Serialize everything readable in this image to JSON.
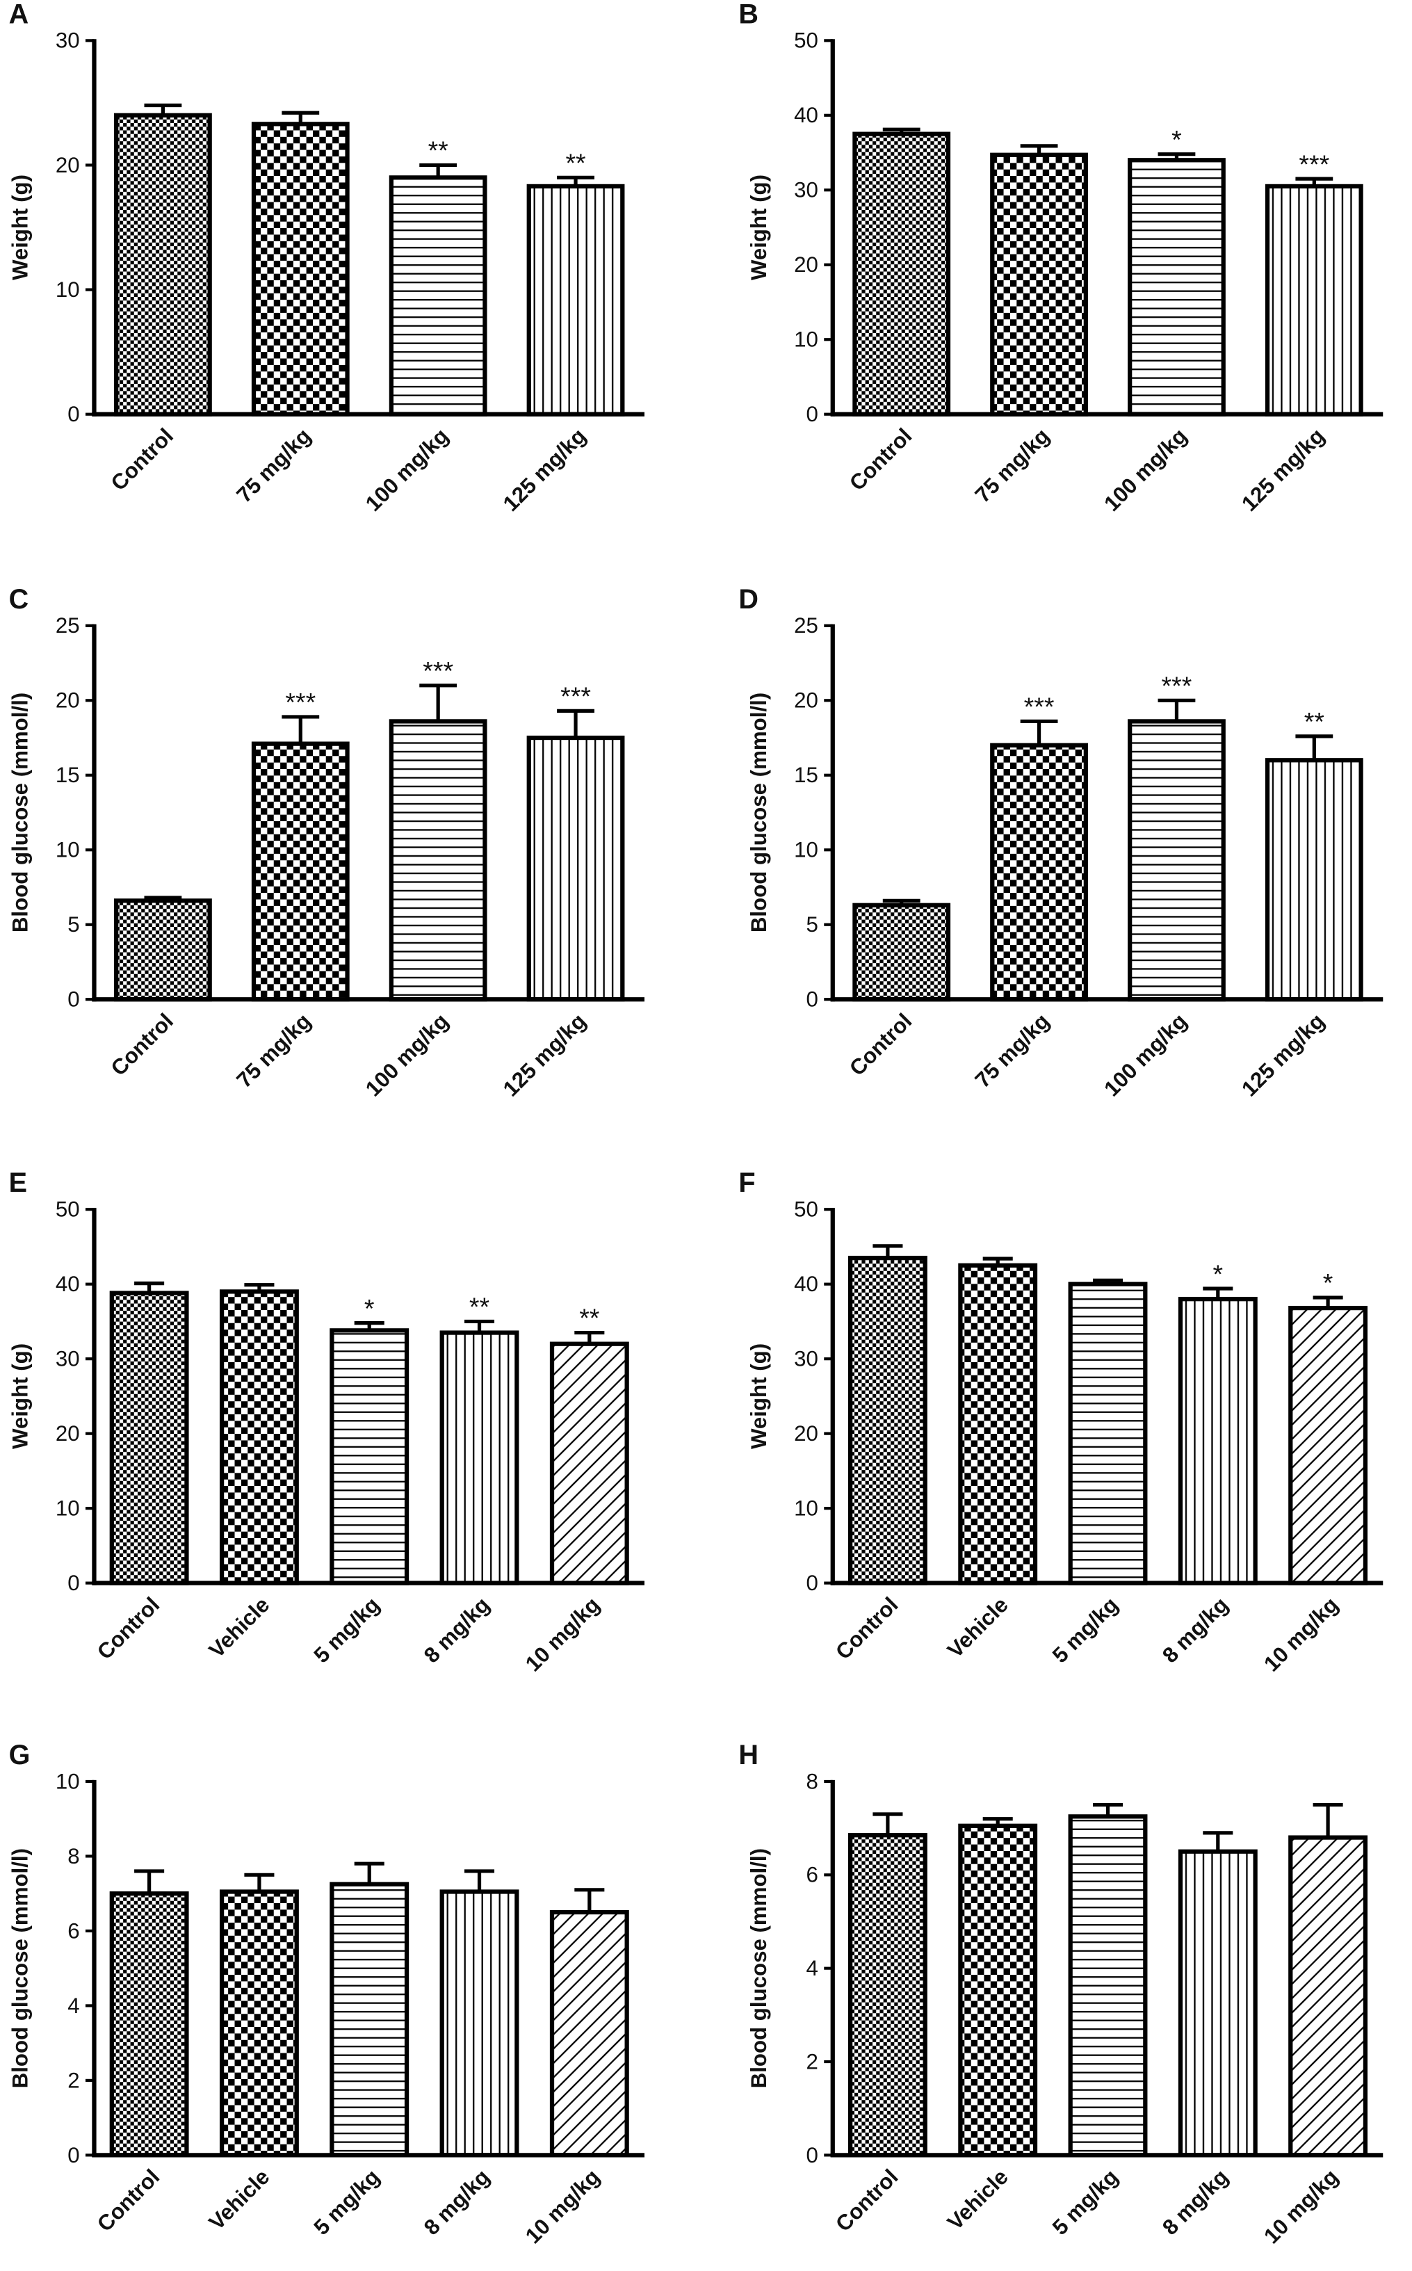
{
  "chart_data": [
    {
      "type": "bar",
      "panel": "A",
      "ylabel": "Weight (g)",
      "categories": [
        "Control",
        "75 mg/kg",
        "100 mg/kg",
        "125 mg/kg"
      ],
      "values": [
        24,
        23.3,
        19,
        18.3
      ],
      "errors": [
        0.8,
        0.9,
        1.0,
        0.7
      ],
      "annotations": [
        null,
        null,
        "**",
        "**"
      ],
      "ylim": [
        0,
        30
      ],
      "yticks": [
        0,
        10,
        20,
        30
      ]
    },
    {
      "type": "bar",
      "panel": "B",
      "ylabel": "Weight (g)",
      "categories": [
        "Control",
        "75 mg/kg",
        "100 mg/kg",
        "125 mg/kg"
      ],
      "values": [
        37.5,
        34.7,
        34,
        30.5
      ],
      "errors": [
        0.6,
        1.2,
        0.8,
        1.0
      ],
      "annotations": [
        null,
        null,
        "*",
        "***"
      ],
      "ylim": [
        0,
        50
      ],
      "yticks": [
        0,
        10,
        20,
        30,
        40,
        50
      ]
    },
    {
      "type": "bar",
      "panel": "C",
      "ylabel": "Blood glucose (mmol/l)",
      "categories": [
        "Control",
        "75 mg/kg",
        "100 mg/kg",
        "125 mg/kg"
      ],
      "values": [
        6.6,
        17.1,
        18.6,
        17.5
      ],
      "errors": [
        0.2,
        1.8,
        2.4,
        1.8
      ],
      "annotations": [
        null,
        "***",
        "***",
        "***"
      ],
      "ylim": [
        0,
        25
      ],
      "yticks": [
        0,
        5,
        10,
        15,
        20,
        25
      ]
    },
    {
      "type": "bar",
      "panel": "D",
      "ylabel": "Blood glucose (mmol/l)",
      "categories": [
        "Control",
        "75 mg/kg",
        "100 mg/kg",
        "125 mg/kg"
      ],
      "values": [
        6.3,
        17,
        18.6,
        16
      ],
      "errors": [
        0.3,
        1.6,
        1.4,
        1.6
      ],
      "annotations": [
        null,
        "***",
        "***",
        "**"
      ],
      "ylim": [
        0,
        25
      ],
      "yticks": [
        0,
        5,
        10,
        15,
        20,
        25
      ]
    },
    {
      "type": "bar",
      "panel": "E",
      "ylabel": "Weight (g)",
      "categories": [
        "Control",
        "Vehicle",
        "5 mg/kg",
        "8 mg/kg",
        "10 mg/kg"
      ],
      "values": [
        38.8,
        39,
        33.8,
        33.5,
        32
      ],
      "errors": [
        1.3,
        0.9,
        1.0,
        1.5,
        1.5
      ],
      "annotations": [
        null,
        null,
        "*",
        "**",
        "**"
      ],
      "ylim": [
        0,
        50
      ],
      "yticks": [
        0,
        10,
        20,
        30,
        40,
        50
      ]
    },
    {
      "type": "bar",
      "panel": "F",
      "ylabel": "Weight (g)",
      "categories": [
        "Control",
        "Vehicle",
        "5 mg/kg",
        "8 mg/kg",
        "10 mg/kg"
      ],
      "values": [
        43.5,
        42.5,
        40,
        38,
        36.8
      ],
      "errors": [
        1.6,
        0.9,
        0.5,
        1.4,
        1.4
      ],
      "annotations": [
        null,
        null,
        null,
        "*",
        "*"
      ],
      "ylim": [
        0,
        50
      ],
      "yticks": [
        0,
        10,
        20,
        30,
        40,
        50
      ]
    },
    {
      "type": "bar",
      "panel": "G",
      "ylabel": "Blood glucose (mmol/l)",
      "categories": [
        "Control",
        "Vehicle",
        "5 mg/kg",
        "8 mg/kg",
        "10 mg/kg"
      ],
      "values": [
        7,
        7.05,
        7.25,
        7.05,
        6.5
      ],
      "errors": [
        0.6,
        0.45,
        0.55,
        0.55,
        0.6
      ],
      "annotations": [
        null,
        null,
        null,
        null,
        null
      ],
      "ylim": [
        0,
        10
      ],
      "yticks": [
        0,
        2,
        4,
        6,
        8,
        10
      ]
    },
    {
      "type": "bar",
      "panel": "H",
      "ylabel": "Blood glucose (mmol/l)",
      "categories": [
        "Control",
        "Vehicle",
        "5 mg/kg",
        "8 mg/kg",
        "10 mg/kg"
      ],
      "values": [
        6.85,
        7.05,
        7.25,
        6.5,
        6.8
      ],
      "errors": [
        0.45,
        0.15,
        0.25,
        0.4,
        0.7
      ],
      "annotations": [
        null,
        null,
        null,
        null,
        null
      ],
      "ylim": [
        0,
        8
      ],
      "yticks": [
        0,
        2,
        4,
        6,
        8
      ]
    }
  ]
}
